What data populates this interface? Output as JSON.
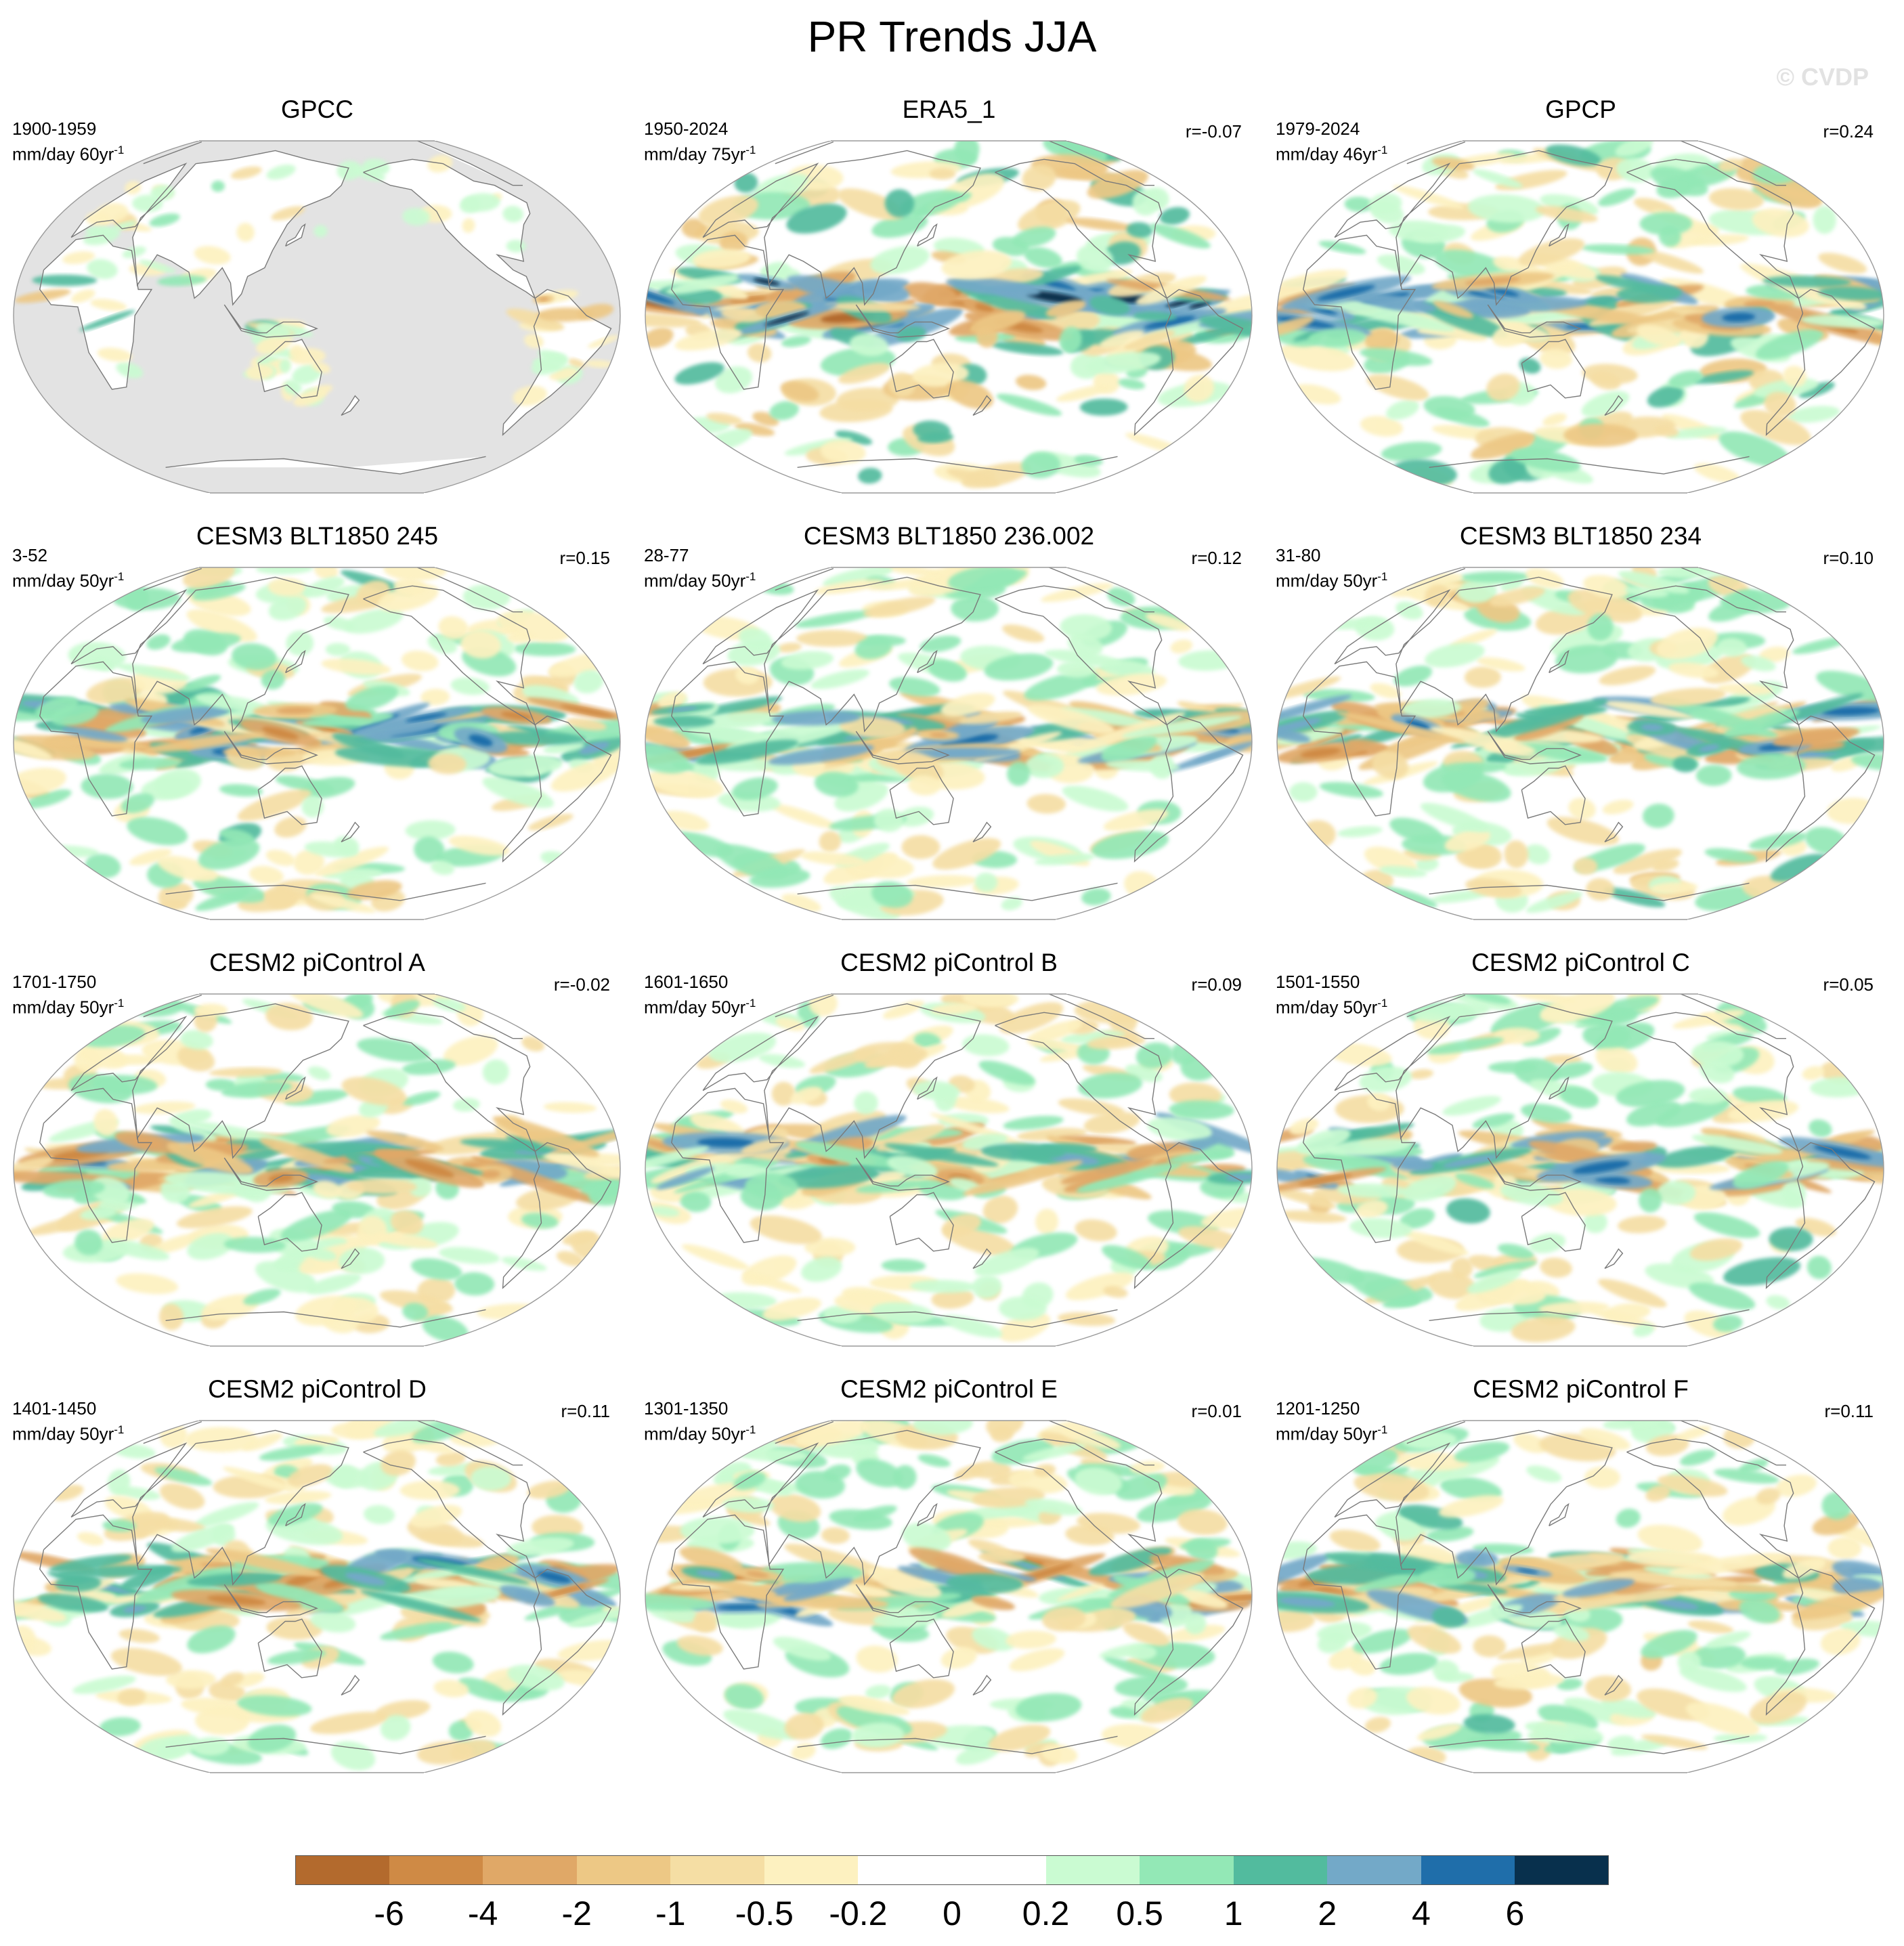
{
  "figure": {
    "title": "PR Trends JJA",
    "watermark": "© CVDP"
  },
  "panels": [
    {
      "title": "GPCC",
      "period": "1900-1959",
      "units": "mm/day 60yr",
      "unit_exp": "-1",
      "corr": "",
      "masked": true,
      "seed": 11,
      "scale": 0.55
    },
    {
      "title": "ERA5_1",
      "period": "1950-2024",
      "units": "mm/day 75yr",
      "unit_exp": "-1",
      "corr": "r=-0.07",
      "masked": false,
      "seed": 23,
      "scale": 1.25
    },
    {
      "title": "GPCP",
      "period": "1979-2024",
      "units": "mm/day 46yr",
      "unit_exp": "-1",
      "corr": "r=0.24",
      "masked": false,
      "seed": 37,
      "scale": 1.05
    },
    {
      "title": "CESM3 BLT1850 245",
      "period": "3-52",
      "units": "mm/day 50yr",
      "unit_exp": "-1",
      "corr": "r=0.15",
      "masked": false,
      "seed": 41,
      "scale": 0.95
    },
    {
      "title": "CESM3 BLT1850 236.002",
      "period": "28-77",
      "units": "mm/day 50yr",
      "unit_exp": "-1",
      "corr": "r=0.12",
      "masked": false,
      "seed": 53,
      "scale": 0.9
    },
    {
      "title": "CESM3 BLT1850 234",
      "period": "31-80",
      "units": "mm/day 50yr",
      "unit_exp": "-1",
      "corr": "r=0.10",
      "masked": false,
      "seed": 67,
      "scale": 0.95
    },
    {
      "title": "CESM2 piControl A",
      "period": "1701-1750",
      "units": "mm/day 50yr",
      "unit_exp": "-1",
      "corr": "r=-0.02",
      "masked": false,
      "seed": 71,
      "scale": 0.9
    },
    {
      "title": "CESM2 piControl B",
      "period": "1601-1650",
      "units": "mm/day 50yr",
      "unit_exp": "-1",
      "corr": "r=0.09",
      "masked": false,
      "seed": 83,
      "scale": 0.9
    },
    {
      "title": "CESM2 piControl C",
      "period": "1501-1550",
      "units": "mm/day 50yr",
      "unit_exp": "-1",
      "corr": "r=0.05",
      "masked": false,
      "seed": 97,
      "scale": 0.95
    },
    {
      "title": "CESM2 piControl D",
      "period": "1401-1450",
      "units": "mm/day 50yr",
      "unit_exp": "-1",
      "corr": "r=0.11",
      "masked": false,
      "seed": 101,
      "scale": 0.9
    },
    {
      "title": "CESM2 piControl E",
      "period": "1301-1350",
      "units": "mm/day 50yr",
      "unit_exp": "-1",
      "corr": "r=0.01",
      "masked": false,
      "seed": 113,
      "scale": 0.9
    },
    {
      "title": "CESM2 piControl F",
      "period": "1201-1250",
      "units": "mm/day 50yr",
      "unit_exp": "-1",
      "corr": "r=0.11",
      "masked": false,
      "seed": 127,
      "scale": 0.95
    }
  ],
  "colorbar": {
    "labels": [
      "-6",
      "-4",
      "-2",
      "-1",
      "-0.5",
      "-0.2",
      "0",
      "0.2",
      "0.5",
      "1",
      "2",
      "4",
      "6"
    ],
    "colors": [
      "#b36a2d",
      "#cf8a45",
      "#e0a867",
      "#edc885",
      "#f5dea4",
      "#fdf1c0",
      "#ffffff",
      "#ffffff",
      "#cafbd2",
      "#93e8b6",
      "#52bb9e",
      "#73a9c8",
      "#1f6eaa",
      "#08304d"
    ]
  },
  "map_style": {
    "ocean_mask_color": "#e3e3e3",
    "coast_color": "#7a7a7a",
    "border_color": "#8a8a8a"
  }
}
